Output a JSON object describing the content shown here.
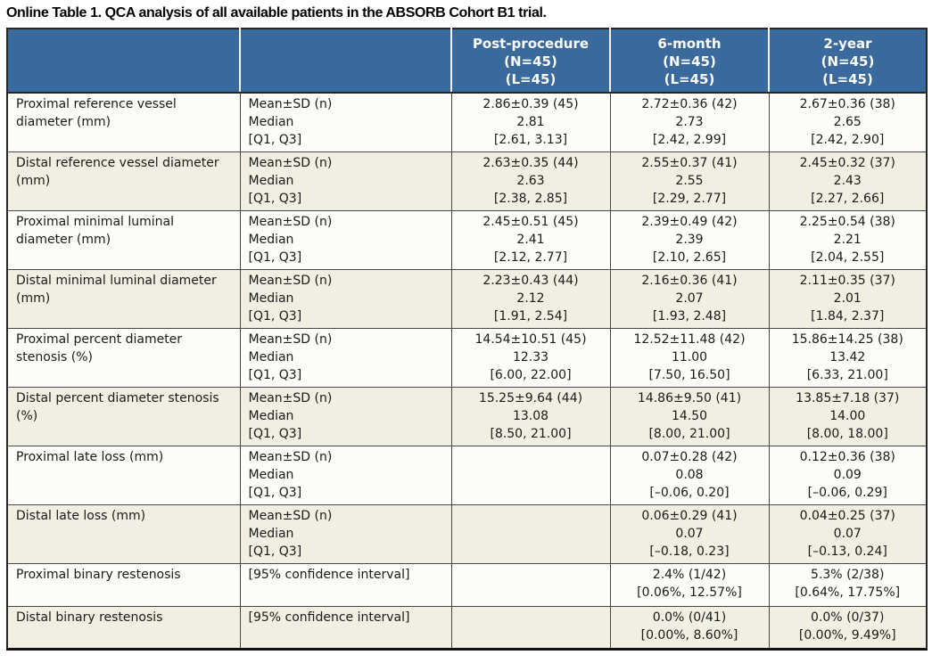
{
  "title": "Online Table 1. QCA analysis of all available patients in the ABSORB Cohort B1 trial.",
  "colors": {
    "header_bg": "#3A699C",
    "header_text": "#FFFFFF",
    "header_divider": "#F2F4F8",
    "row_light_bg": "#FCFCF8",
    "row_shade_bg": "#F0EFE1",
    "grid_line": "#474747",
    "outer_border": "#262626"
  },
  "chart_data": {
    "type": "table",
    "title": "Online Table 1. QCA analysis of all available patients in the ABSORB Cohort B1 trial.",
    "columns": [
      "",
      "",
      "Post-procedure (N=45) (L=45)",
      "6-month (N=45) (L=45)",
      "2-year (N=45) (L=45)"
    ]
  },
  "table": {
    "header": {
      "blank1": "",
      "blank2": "",
      "post": [
        "Post-procedure",
        "(N=45)",
        "(L=45)"
      ],
      "month6": [
        "6-month",
        "(N=45)",
        "(L=45)"
      ],
      "year2": [
        "2-year",
        "(N=45)",
        "(L=45)"
      ]
    },
    "rows": [
      {
        "label": "Proximal reference vessel diameter (mm)",
        "stat": [
          "Mean±SD (n)",
          "Median",
          "[Q1, Q3]"
        ],
        "post": [
          "2.86±0.39 (45)",
          "2.81",
          "[2.61, 3.13]"
        ],
        "month6": [
          "2.72±0.36 (42)",
          "2.73",
          "[2.42, 2.99]"
        ],
        "year2": [
          "2.67±0.36 (38)",
          "2.65",
          "[2.42, 2.90]"
        ]
      },
      {
        "label": "Distal reference vessel diameter (mm)",
        "stat": [
          "Mean±SD (n)",
          "Median",
          "[Q1, Q3]"
        ],
        "post": [
          "2.63±0.35 (44)",
          "2.63",
          "[2.38, 2.85]"
        ],
        "month6": [
          "2.55±0.37 (41)",
          "2.55",
          "[2.29, 2.77]"
        ],
        "year2": [
          "2.45±0.32 (37)",
          "2.43",
          "[2.27, 2.66]"
        ]
      },
      {
        "label": "Proximal minimal luminal diameter (mm)",
        "stat": [
          "Mean±SD (n)",
          "Median",
          "[Q1, Q3]"
        ],
        "post": [
          "2.45±0.51 (45)",
          "2.41",
          "[2.12, 2.77]"
        ],
        "month6": [
          "2.39±0.49 (42)",
          "2.39",
          "[2.10, 2.65]"
        ],
        "year2": [
          "2.25±0.54 (38)",
          "2.21",
          "[2.04, 2.55]"
        ]
      },
      {
        "label": "Distal minimal luminal diameter (mm)",
        "stat": [
          "Mean±SD (n)",
          "Median",
          "[Q1, Q3]"
        ],
        "post": [
          "2.23±0.43 (44)",
          "2.12",
          "[1.91, 2.54]"
        ],
        "month6": [
          "2.16±0.36 (41)",
          "2.07",
          "[1.93, 2.48]"
        ],
        "year2": [
          "2.11±0.35 (37)",
          "2.01",
          "[1.84, 2.37]"
        ]
      },
      {
        "label": "Proximal percent diameter stenosis (%)",
        "stat": [
          "Mean±SD (n)",
          "Median",
          "[Q1, Q3]"
        ],
        "post": [
          "14.54±10.51 (45)",
          "12.33",
          "[6.00, 22.00]"
        ],
        "month6": [
          "12.52±11.48 (42)",
          "11.00",
          "[7.50, 16.50]"
        ],
        "year2": [
          "15.86±14.25 (38)",
          "13.42",
          "[6.33, 21.00]"
        ]
      },
      {
        "label": "Distal percent diameter stenosis (%)",
        "stat": [
          "Mean±SD (n)",
          "Median",
          "[Q1, Q3]"
        ],
        "post": [
          "15.25±9.64 (44)",
          "13.08",
          "[8.50, 21.00]"
        ],
        "month6": [
          "14.86±9.50 (41)",
          "14.50",
          "[8.00, 21.00]"
        ],
        "year2": [
          "13.85±7.18 (37)",
          "14.00",
          "[8.00, 18.00]"
        ]
      },
      {
        "label": "Proximal late loss (mm)",
        "stat": [
          "Mean±SD (n)",
          "Median",
          "[Q1, Q3]"
        ],
        "post": [],
        "month6": [
          "0.07±0.28 (42)",
          "0.08",
          "[–0.06, 0.20]"
        ],
        "year2": [
          "0.12±0.36 (38)",
          "0.09",
          "[–0.06, 0.29]"
        ]
      },
      {
        "label": "Distal late loss (mm)",
        "stat": [
          "Mean±SD (n)",
          "Median",
          "[Q1, Q3]"
        ],
        "post": [],
        "month6": [
          "0.06±0.29 (41)",
          "0.07",
          "[–0.18, 0.23]"
        ],
        "year2": [
          "0.04±0.25 (37)",
          "0.07",
          "[–0.13, 0.24]"
        ]
      },
      {
        "label": "Proximal binary restenosis",
        "stat": [
          "[95% confidence interval]"
        ],
        "post": [],
        "month6": [
          "2.4% (1/42)",
          "[0.06%, 12.57%]"
        ],
        "year2": [
          "5.3% (2/38)",
          "[0.64%, 17.75%]"
        ]
      },
      {
        "label": "Distal binary restenosis",
        "stat": [
          "[95% confidence interval]"
        ],
        "post": [],
        "month6": [
          "0.0% (0/41)",
          "[0.00%, 8.60%]"
        ],
        "year2": [
          "0.0% (0/37)",
          "[0.00%, 9.49%]"
        ]
      }
    ]
  }
}
